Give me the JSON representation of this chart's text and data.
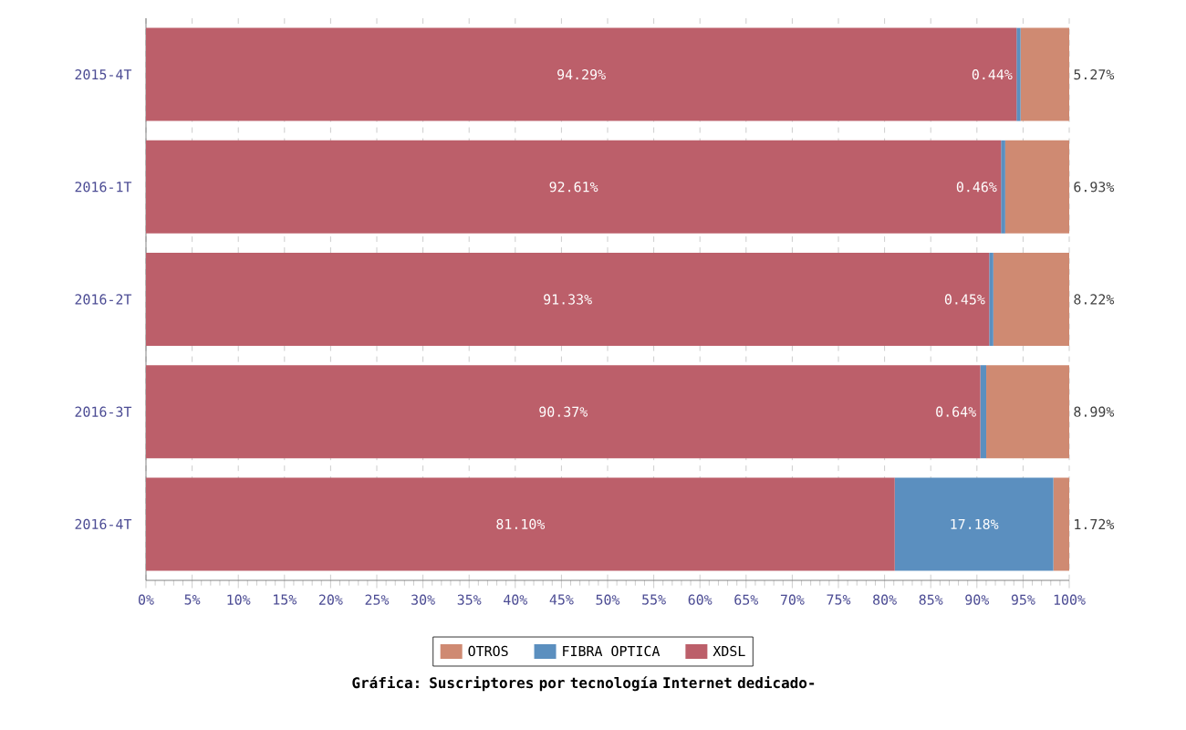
{
  "chart_data": {
    "type": "bar",
    "orientation": "horizontal",
    "stacked": true,
    "title": "Gráfica: Suscriptores por tecnología Internet dedicado-",
    "categories": [
      "2015-4T",
      "2016-1T",
      "2016-2T",
      "2016-3T",
      "2016-4T"
    ],
    "series": [
      {
        "name": "XDSL",
        "color": "#bc5f6a",
        "values": [
          94.29,
          92.61,
          91.33,
          90.37,
          81.1
        ],
        "value_labels": [
          "94.29%",
          "92.61%",
          "91.33%",
          "90.37%",
          "81.10%"
        ]
      },
      {
        "name": "FIBRA OPTICA",
        "color": "#5b8fbf",
        "values": [
          0.44,
          0.46,
          0.45,
          0.64,
          17.18
        ],
        "value_labels": [
          "0.44%",
          "0.46%",
          "0.45%",
          "0.64%",
          "17.18%"
        ]
      },
      {
        "name": "OTROS",
        "color": "#cf8a72",
        "values": [
          5.27,
          6.93,
          8.22,
          8.99,
          1.72
        ],
        "value_labels": [
          "5.27%",
          "6.93%",
          "8.22%",
          "8.99%",
          "1.72%"
        ]
      }
    ],
    "xlim": [
      0,
      100
    ],
    "xticks": [
      {
        "value": 0,
        "label": "0%"
      },
      {
        "value": 5,
        "label": "5%"
      },
      {
        "value": 10,
        "label": "10%"
      },
      {
        "value": 15,
        "label": "15%"
      },
      {
        "value": 20,
        "label": "20%"
      },
      {
        "value": 25,
        "label": "25%"
      },
      {
        "value": 30,
        "label": "30%"
      },
      {
        "value": 35,
        "label": "35%"
      },
      {
        "value": 40,
        "label": "40%"
      },
      {
        "value": 45,
        "label": "45%"
      },
      {
        "value": 50,
        "label": "50%"
      },
      {
        "value": 55,
        "label": "55%"
      },
      {
        "value": 60,
        "label": "60%"
      },
      {
        "value": 65,
        "label": "65%"
      },
      {
        "value": 70,
        "label": "70%"
      },
      {
        "value": 75,
        "label": "75%"
      },
      {
        "value": 80,
        "label": "80%"
      },
      {
        "value": 85,
        "label": "85%"
      },
      {
        "value": 90,
        "label": "90%"
      },
      {
        "value": 95,
        "label": "95%"
      },
      {
        "value": 100,
        "label": "100%"
      }
    ],
    "grid": "x",
    "legend": "bottom"
  }
}
